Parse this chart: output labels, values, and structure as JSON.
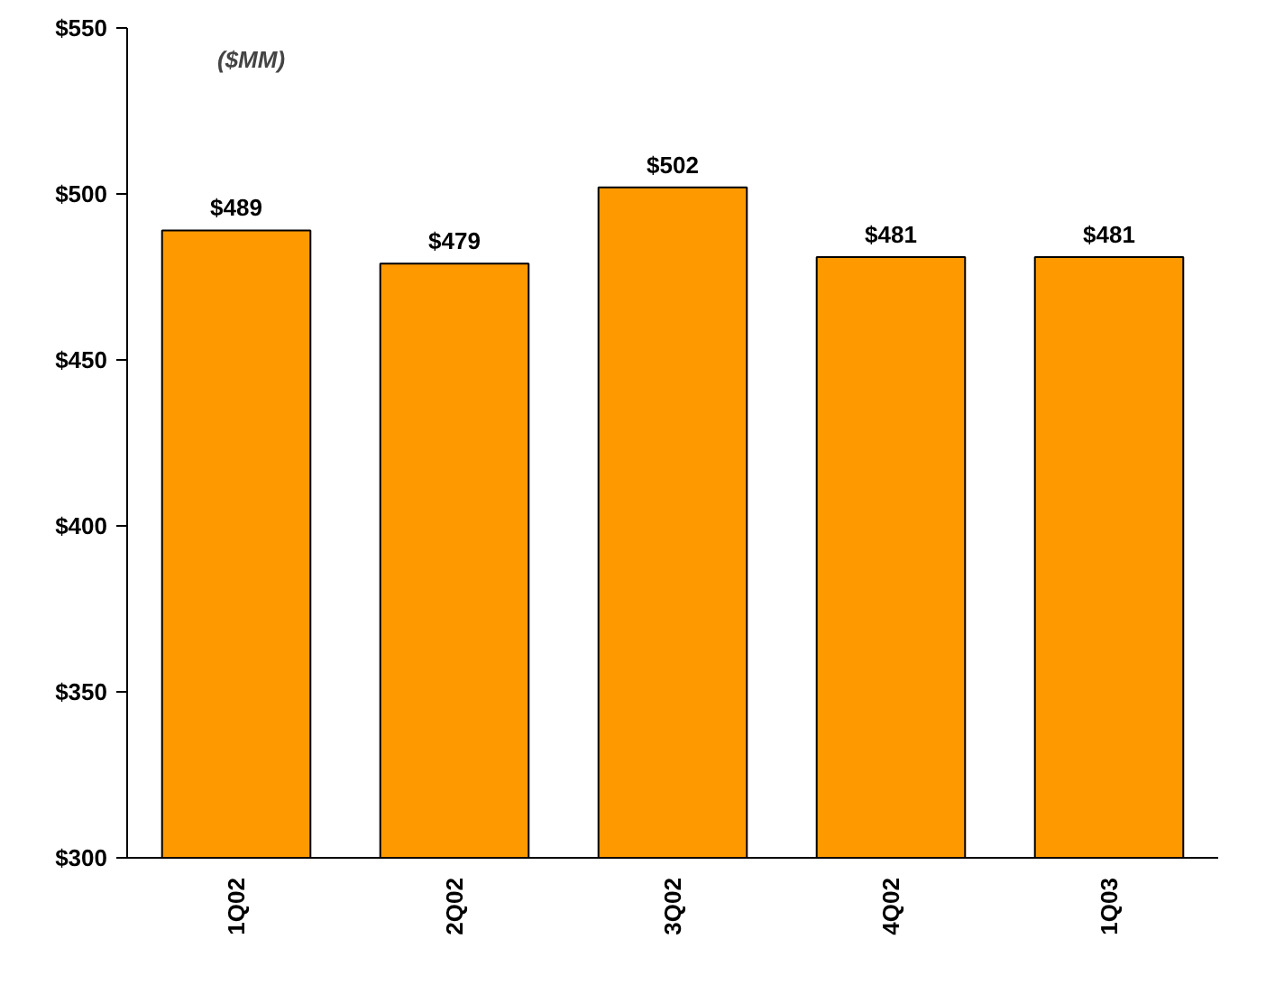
{
  "chart_data": {
    "type": "bar",
    "categories": [
      "1Q02",
      "2Q02",
      "3Q02",
      "4Q02",
      "1Q03"
    ],
    "values": [
      489,
      479,
      502,
      481,
      481
    ],
    "value_labels": [
      "$489",
      "$479",
      "$502",
      "$481",
      "$481"
    ],
    "color": "#ff9900",
    "ylim": [
      300,
      550
    ],
    "yticks": [
      {
        "value": 300,
        "label": "$300"
      },
      {
        "value": 350,
        "label": "$350"
      },
      {
        "value": 400,
        "label": "$400"
      },
      {
        "value": 450,
        "label": "$450"
      },
      {
        "value": 500,
        "label": "$500"
      },
      {
        "value": 550,
        "label": "$550"
      }
    ],
    "annotations": [
      "($MM)"
    ],
    "grid": false
  }
}
